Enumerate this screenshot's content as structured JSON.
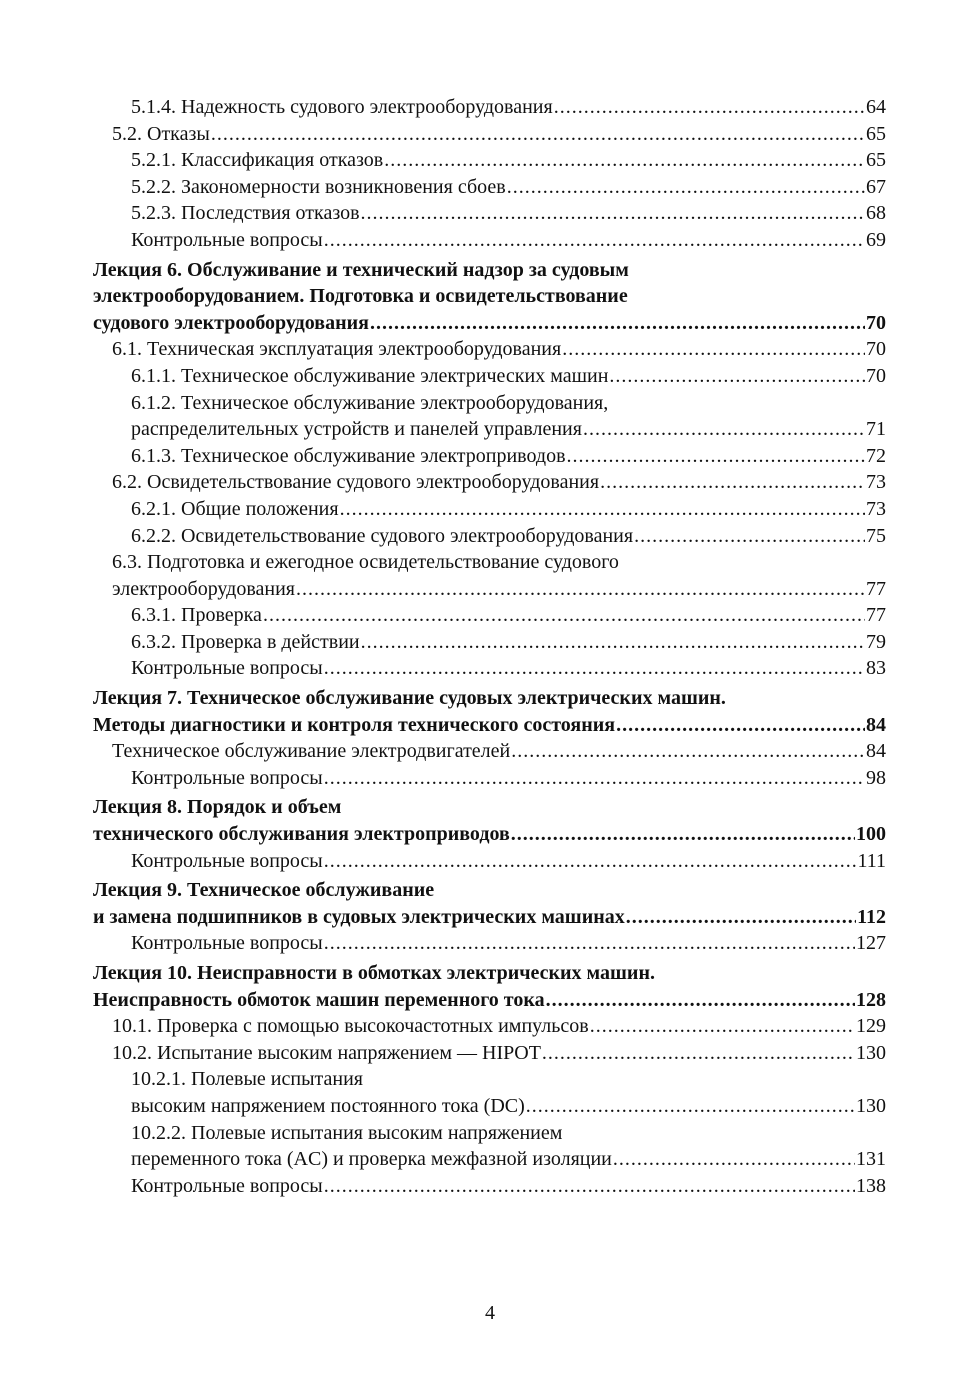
{
  "toc": [
    {
      "level": 2,
      "bold": false,
      "lines": [],
      "last": "5.1.4. Надежность судового электрооборудования",
      "page": "64"
    },
    {
      "level": 1,
      "bold": false,
      "lines": [],
      "last": "5.2. Отказы",
      "page": "65"
    },
    {
      "level": 2,
      "bold": false,
      "lines": [],
      "last": "5.2.1. Классификация отказов",
      "page": "65"
    },
    {
      "level": 2,
      "bold": false,
      "lines": [],
      "last": "5.2.2. Закономерности возникновения сбоев",
      "page": "67"
    },
    {
      "level": 2,
      "bold": false,
      "lines": [],
      "last": "5.2.3. Последствия отказов",
      "page": "68"
    },
    {
      "level": 2,
      "bold": false,
      "lines": [],
      "last": "Контрольные вопросы",
      "page": "69"
    },
    {
      "level": 0,
      "bold": true,
      "lines": [
        "Лекция 6. Обслуживание и технический надзор за судовым",
        "электрооборудованием. Подготовка и освидетельствование"
      ],
      "last": "судового электрооборудования",
      "page": "70"
    },
    {
      "level": 1,
      "bold": false,
      "lines": [],
      "last": "6.1. Техническая эксплуатация электрооборудования",
      "page": "70"
    },
    {
      "level": 2,
      "bold": false,
      "lines": [],
      "last": "6.1.1. Техническое обслуживание электрических машин",
      "page": "70"
    },
    {
      "level": 2,
      "bold": false,
      "lines": [
        "6.1.2. Техническое обслуживание электрооборудования,"
      ],
      "last": "распределительных устройств и панелей управления",
      "page": "71"
    },
    {
      "level": 2,
      "bold": false,
      "lines": [],
      "last": "6.1.3. Техническое обслуживание электроприводов",
      "page": "72"
    },
    {
      "level": 1,
      "bold": false,
      "lines": [],
      "last": "6.2. Освидетельствование судового электрооборудования",
      "page": "73"
    },
    {
      "level": 2,
      "bold": false,
      "lines": [],
      "last": "6.2.1. Общие положения",
      "page": "73"
    },
    {
      "level": 2,
      "bold": false,
      "lines": [],
      "last": "6.2.2. Освидетельствование судового электрооборудования",
      "page": "75"
    },
    {
      "level": 1,
      "bold": false,
      "lines": [
        "6.3. Подготовка и ежегодное освидетельствование судового"
      ],
      "last": "электрооборудования",
      "page": "77"
    },
    {
      "level": 2,
      "bold": false,
      "lines": [],
      "last": "6.3.1. Проверка",
      "page": "77"
    },
    {
      "level": 2,
      "bold": false,
      "lines": [],
      "last": "6.3.2. Проверка в действии",
      "page": "79"
    },
    {
      "level": 2,
      "bold": false,
      "lines": [],
      "last": "Контрольные вопросы",
      "page": "83"
    },
    {
      "level": 0,
      "bold": true,
      "lines": [
        "Лекция 7. Техническое обслуживание судовых электрических машин."
      ],
      "last": "Методы диагностики и контроля технического состояния",
      "page": "84"
    },
    {
      "level": 1,
      "bold": false,
      "lines": [],
      "last": "Техническое обслуживание электродвигателей",
      "page": "84"
    },
    {
      "level": 2,
      "bold": false,
      "lines": [],
      "last": "Контрольные вопросы",
      "page": "98"
    },
    {
      "level": 0,
      "bold": true,
      "lines": [
        "Лекция 8. Порядок и объем"
      ],
      "last": "технического обслуживания электроприводов",
      "page": "100"
    },
    {
      "level": 2,
      "bold": false,
      "lines": [],
      "last": "Контрольные вопросы",
      "page": "111"
    },
    {
      "level": 0,
      "bold": true,
      "lines": [
        "Лекция 9. Техническое обслуживание"
      ],
      "last": "и замена подшипников в судовых электрических машинах",
      "page": "112"
    },
    {
      "level": 2,
      "bold": false,
      "lines": [],
      "last": "Контрольные вопросы",
      "page": "127"
    },
    {
      "level": 0,
      "bold": true,
      "lines": [
        "Лекция 10. Неисправности в обмотках электрических машин."
      ],
      "last": "Неисправность обмоток машин переменного тока",
      "page": "128"
    },
    {
      "level": 1,
      "bold": false,
      "lines": [],
      "last": "10.1. Проверка с помощью высокочастотных импульсов",
      "page": "129"
    },
    {
      "level": 1,
      "bold": false,
      "lines": [],
      "last": "10.2. Испытание высоким напряжением — HIPOT",
      "page": "130"
    },
    {
      "level": 2,
      "bold": false,
      "lines": [
        "10.2.1. Полевые испытания"
      ],
      "last": "высоким напряжением постоянного тока (DC)",
      "page": "130"
    },
    {
      "level": 2,
      "bold": false,
      "lines": [
        "10.2.2. Полевые испытания высоким напряжением"
      ],
      "last": "переменного тока (AC) и проверка межфазной изоляции",
      "page": "131"
    },
    {
      "level": 2,
      "bold": false,
      "lines": [],
      "last": "Контрольные вопросы",
      "page": "138"
    }
  ],
  "page_number": "4"
}
